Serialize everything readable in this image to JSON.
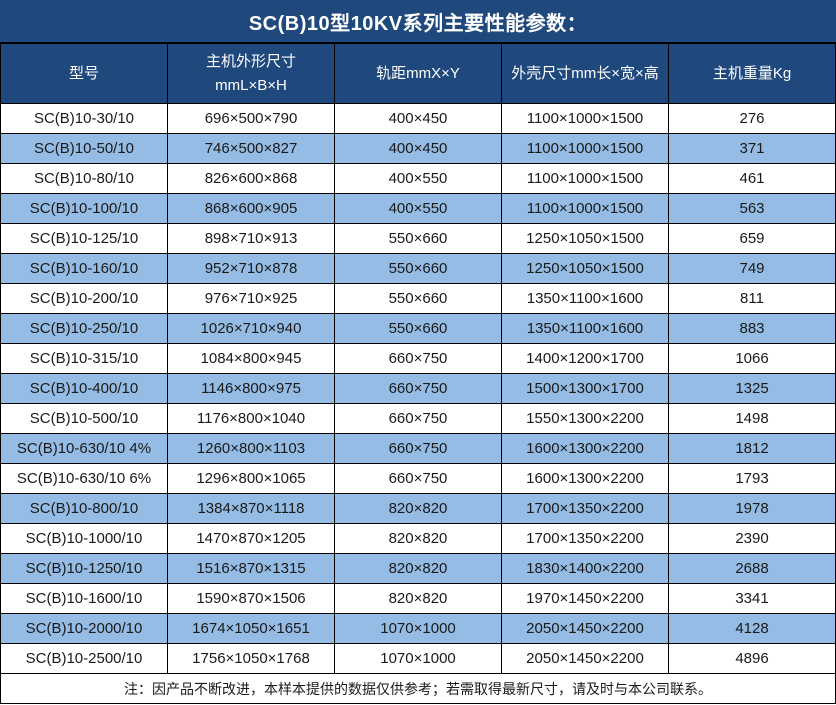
{
  "title": "SC(B)10型10KV系列主要性能参数：",
  "colors": {
    "header_bg": "#1F497D",
    "alt_row_bg": "#95BCE4",
    "border": "#000000",
    "header_text": "#ffffff",
    "body_text": "#1a1a1a"
  },
  "table": {
    "columns": [
      "型号",
      "主机外形尺寸\nmmL×B×H",
      "轨距mmX×Y",
      "外壳尺寸mm长×宽×高",
      "主机重量Kg"
    ],
    "rows": [
      [
        "SC(B)10-30/10",
        "696×500×790",
        "400×450",
        "1100×1000×1500",
        "276"
      ],
      [
        "SC(B)10-50/10",
        "746×500×827",
        "400×450",
        "1100×1000×1500",
        "371"
      ],
      [
        "SC(B)10-80/10",
        "826×600×868",
        "400×550",
        "1100×1000×1500",
        "461"
      ],
      [
        "SC(B)10-100/10",
        "868×600×905",
        "400×550",
        "1100×1000×1500",
        "563"
      ],
      [
        "SC(B)10-125/10",
        "898×710×913",
        "550×660",
        "1250×1050×1500",
        "659"
      ],
      [
        "SC(B)10-160/10",
        "952×710×878",
        "550×660",
        "1250×1050×1500",
        "749"
      ],
      [
        "SC(B)10-200/10",
        "976×710×925",
        "550×660",
        "1350×1100×1600",
        "811"
      ],
      [
        "SC(B)10-250/10",
        "1026×710×940",
        "550×660",
        "1350×1100×1600",
        "883"
      ],
      [
        "SC(B)10-315/10",
        "1084×800×945",
        "660×750",
        "1400×1200×1700",
        "1066"
      ],
      [
        "SC(B)10-400/10",
        "1146×800×975",
        "660×750",
        "1500×1300×1700",
        "1325"
      ],
      [
        "SC(B)10-500/10",
        "1176×800×1040",
        "660×750",
        "1550×1300×2200",
        "1498"
      ],
      [
        "SC(B)10-630/10 4%",
        "1260×800×1103",
        "660×750",
        "1600×1300×2200",
        "1812"
      ],
      [
        "SC(B)10-630/10 6%",
        "1296×800×1065",
        "660×750",
        "1600×1300×2200",
        "1793"
      ],
      [
        "SC(B)10-800/10",
        "1384×870×1118",
        "820×820",
        "1700×1350×2200",
        "1978"
      ],
      [
        "SC(B)10-1000/10",
        "1470×870×1205",
        "820×820",
        "1700×1350×2200",
        "2390"
      ],
      [
        "SC(B)10-1250/10",
        "1516×870×1315",
        "820×820",
        "1830×1400×2200",
        "2688"
      ],
      [
        "SC(B)10-1600/10",
        "1590×870×1506",
        "820×820",
        "1970×1450×2200",
        "3341"
      ],
      [
        "SC(B)10-2000/10",
        "1674×1050×1651",
        "1070×1000",
        "2050×1450×2200",
        "4128"
      ],
      [
        "SC(B)10-2500/10",
        "1756×1050×1768",
        "1070×1000",
        "2050×1450×2200",
        "4896"
      ]
    ],
    "note": "注：因产品不断改进，本样本提供的数据仅供参考；若需取得最新尺寸，请及时与本公司联系。"
  }
}
